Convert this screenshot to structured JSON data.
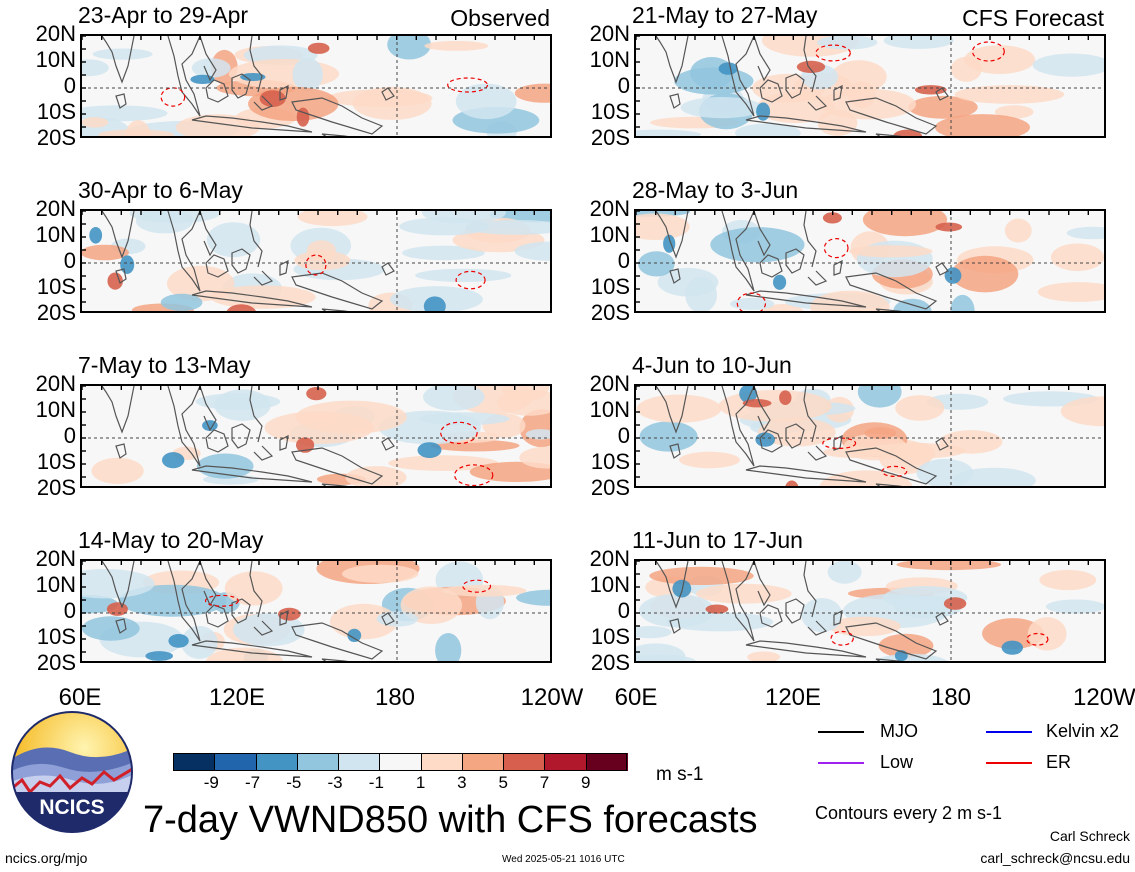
{
  "panels": [
    {
      "title": "23-Apr to 29-Apr",
      "tag": "Observed"
    },
    {
      "title": "21-May to 27-May",
      "tag": "CFS Forecast"
    },
    {
      "title": "30-Apr to 6-May",
      "tag": ""
    },
    {
      "title": "28-May to 3-Jun",
      "tag": ""
    },
    {
      "title": "7-May to 13-May",
      "tag": ""
    },
    {
      "title": "4-Jun to 10-Jun",
      "tag": ""
    },
    {
      "title": "14-May to 20-May",
      "tag": ""
    },
    {
      "title": "11-Jun to 17-Jun",
      "tag": ""
    }
  ],
  "lat_labels": [
    "20N",
    "10N",
    "0",
    "10S",
    "20S"
  ],
  "lon_labels": [
    "60E",
    "120E",
    "180",
    "120W"
  ],
  "colorbar": {
    "colors": [
      "#053061",
      "#2166ac",
      "#4393c3",
      "#92c5de",
      "#d1e5f0",
      "#f7f7f7",
      "#fddbc7",
      "#f4a582",
      "#d6604d",
      "#b2182b",
      "#67001f"
    ],
    "labels": [
      "-9",
      "-7",
      "-5",
      "-3",
      "-1",
      "1",
      "3",
      "5",
      "7",
      "9"
    ],
    "unit": "m s-1"
  },
  "legend": [
    {
      "label": "MJO",
      "color": "#000000"
    },
    {
      "label": "Kelvin x2",
      "color": "#0000ee"
    },
    {
      "label": "Low",
      "color": "#a020f0"
    },
    {
      "label": "ER",
      "color": "#ee0000"
    }
  ],
  "contour_note": "Contours every 2 m s-1",
  "main_title": "7-day VWND850 with CFS forecasts",
  "logo_text": "NCICS",
  "url": "ncics.org/mjo",
  "timestamp": "Wed 2025-05-21 1016 UTC",
  "author": "Carl Schreck",
  "email": "carl_schreck@ncsu.edu"
}
